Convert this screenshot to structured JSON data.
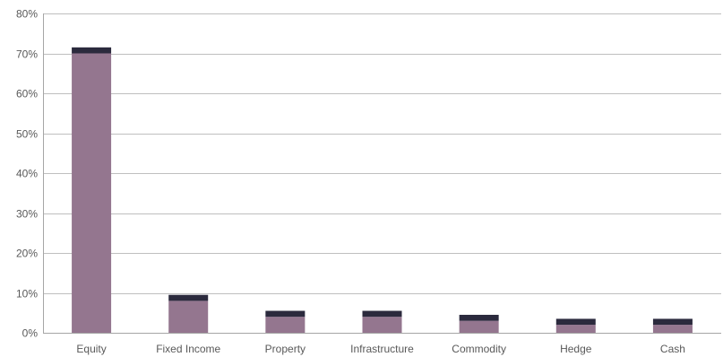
{
  "chart_data": {
    "type": "bar",
    "stacked": true,
    "categories": [
      "Equity",
      "Fixed Income",
      "Property",
      "Infrastructure",
      "Commodity",
      "Hedge",
      "Cash"
    ],
    "series": [
      {
        "color": "#94768f",
        "values": [
          70,
          8,
          4,
          4,
          3,
          2,
          2
        ]
      },
      {
        "color": "#2b2a3d",
        "values": [
          1.5,
          1.5,
          1.5,
          1.5,
          1.5,
          1.5,
          1.5
        ]
      }
    ],
    "ylim": [
      0,
      80
    ],
    "yticks": [
      0,
      10,
      20,
      30,
      40,
      50,
      60,
      70,
      80
    ],
    "ytick_labels": [
      "0%",
      "10%",
      "20%",
      "30%",
      "40%",
      "50%",
      "60%",
      "70%",
      "80%"
    ],
    "grid": true,
    "legend": "none",
    "colors": {
      "grid": "#bfbfbf",
      "axis": "#a6a6a6",
      "text": "#595959"
    }
  }
}
